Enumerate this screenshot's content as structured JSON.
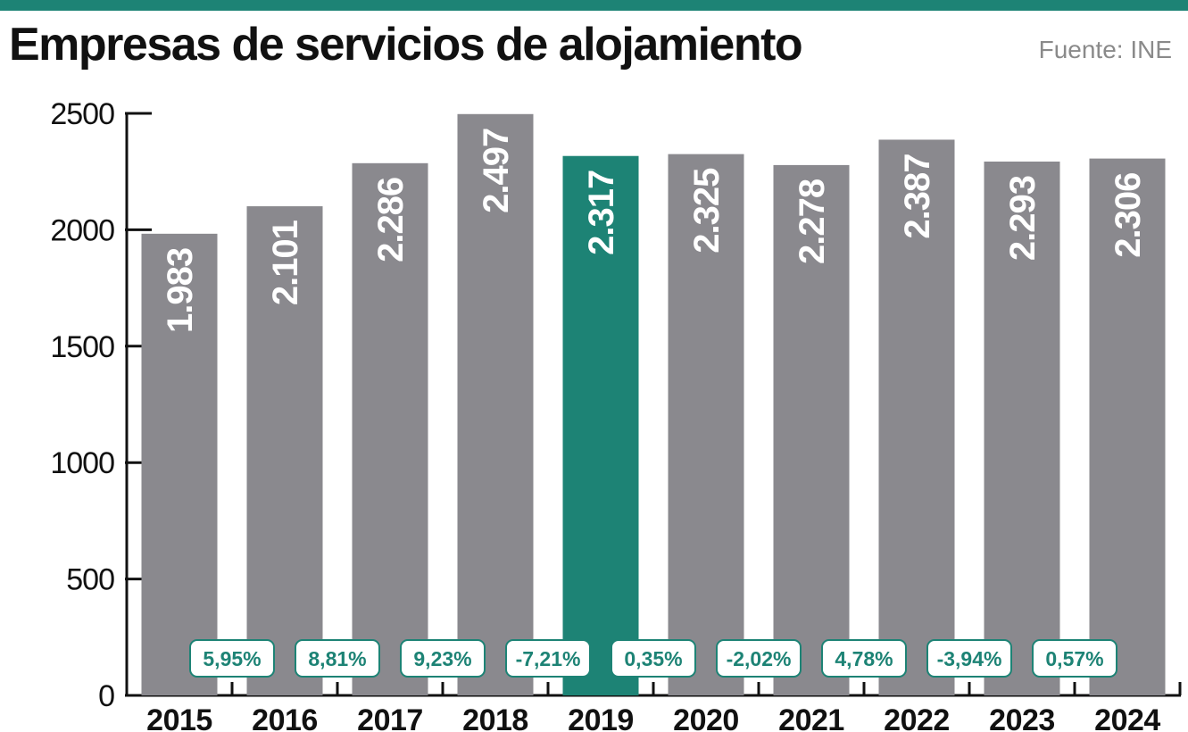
{
  "title": "Empresas de servicios de alojamiento",
  "source": "Fuente: INE",
  "colors": {
    "accent": "#1d8375",
    "bar": "#8a898e",
    "highlight_bar": "#1d8375",
    "axis": "#111111",
    "text": "#111111",
    "source": "#8a8a8a"
  },
  "chart_data": {
    "type": "bar",
    "title": "Empresas de servicios de alojamiento",
    "categories": [
      "2015",
      "2016",
      "2017",
      "2018",
      "2019",
      "2020",
      "2021",
      "2022",
      "2023",
      "2024"
    ],
    "values": [
      1983,
      2101,
      2286,
      2497,
      2317,
      2325,
      2278,
      2387,
      2293,
      2306
    ],
    "value_labels": [
      "1.983",
      "2.101",
      "2.286",
      "2.497",
      "2.317",
      "2.325",
      "2.278",
      "2.387",
      "2.293",
      "2.306"
    ],
    "highlight_category": "2019",
    "changes": [
      "5,95%",
      "8,81%",
      "9,23%",
      "-7,21%",
      "0,35%",
      "-2,02%",
      "4,78%",
      "-3,94%",
      "0,57%"
    ],
    "yticks": [
      0,
      500,
      1000,
      1500,
      2000,
      2500
    ],
    "ylim": [
      0,
      2500
    ],
    "xlabel": "",
    "ylabel": "",
    "grid": false,
    "legend": "none"
  }
}
